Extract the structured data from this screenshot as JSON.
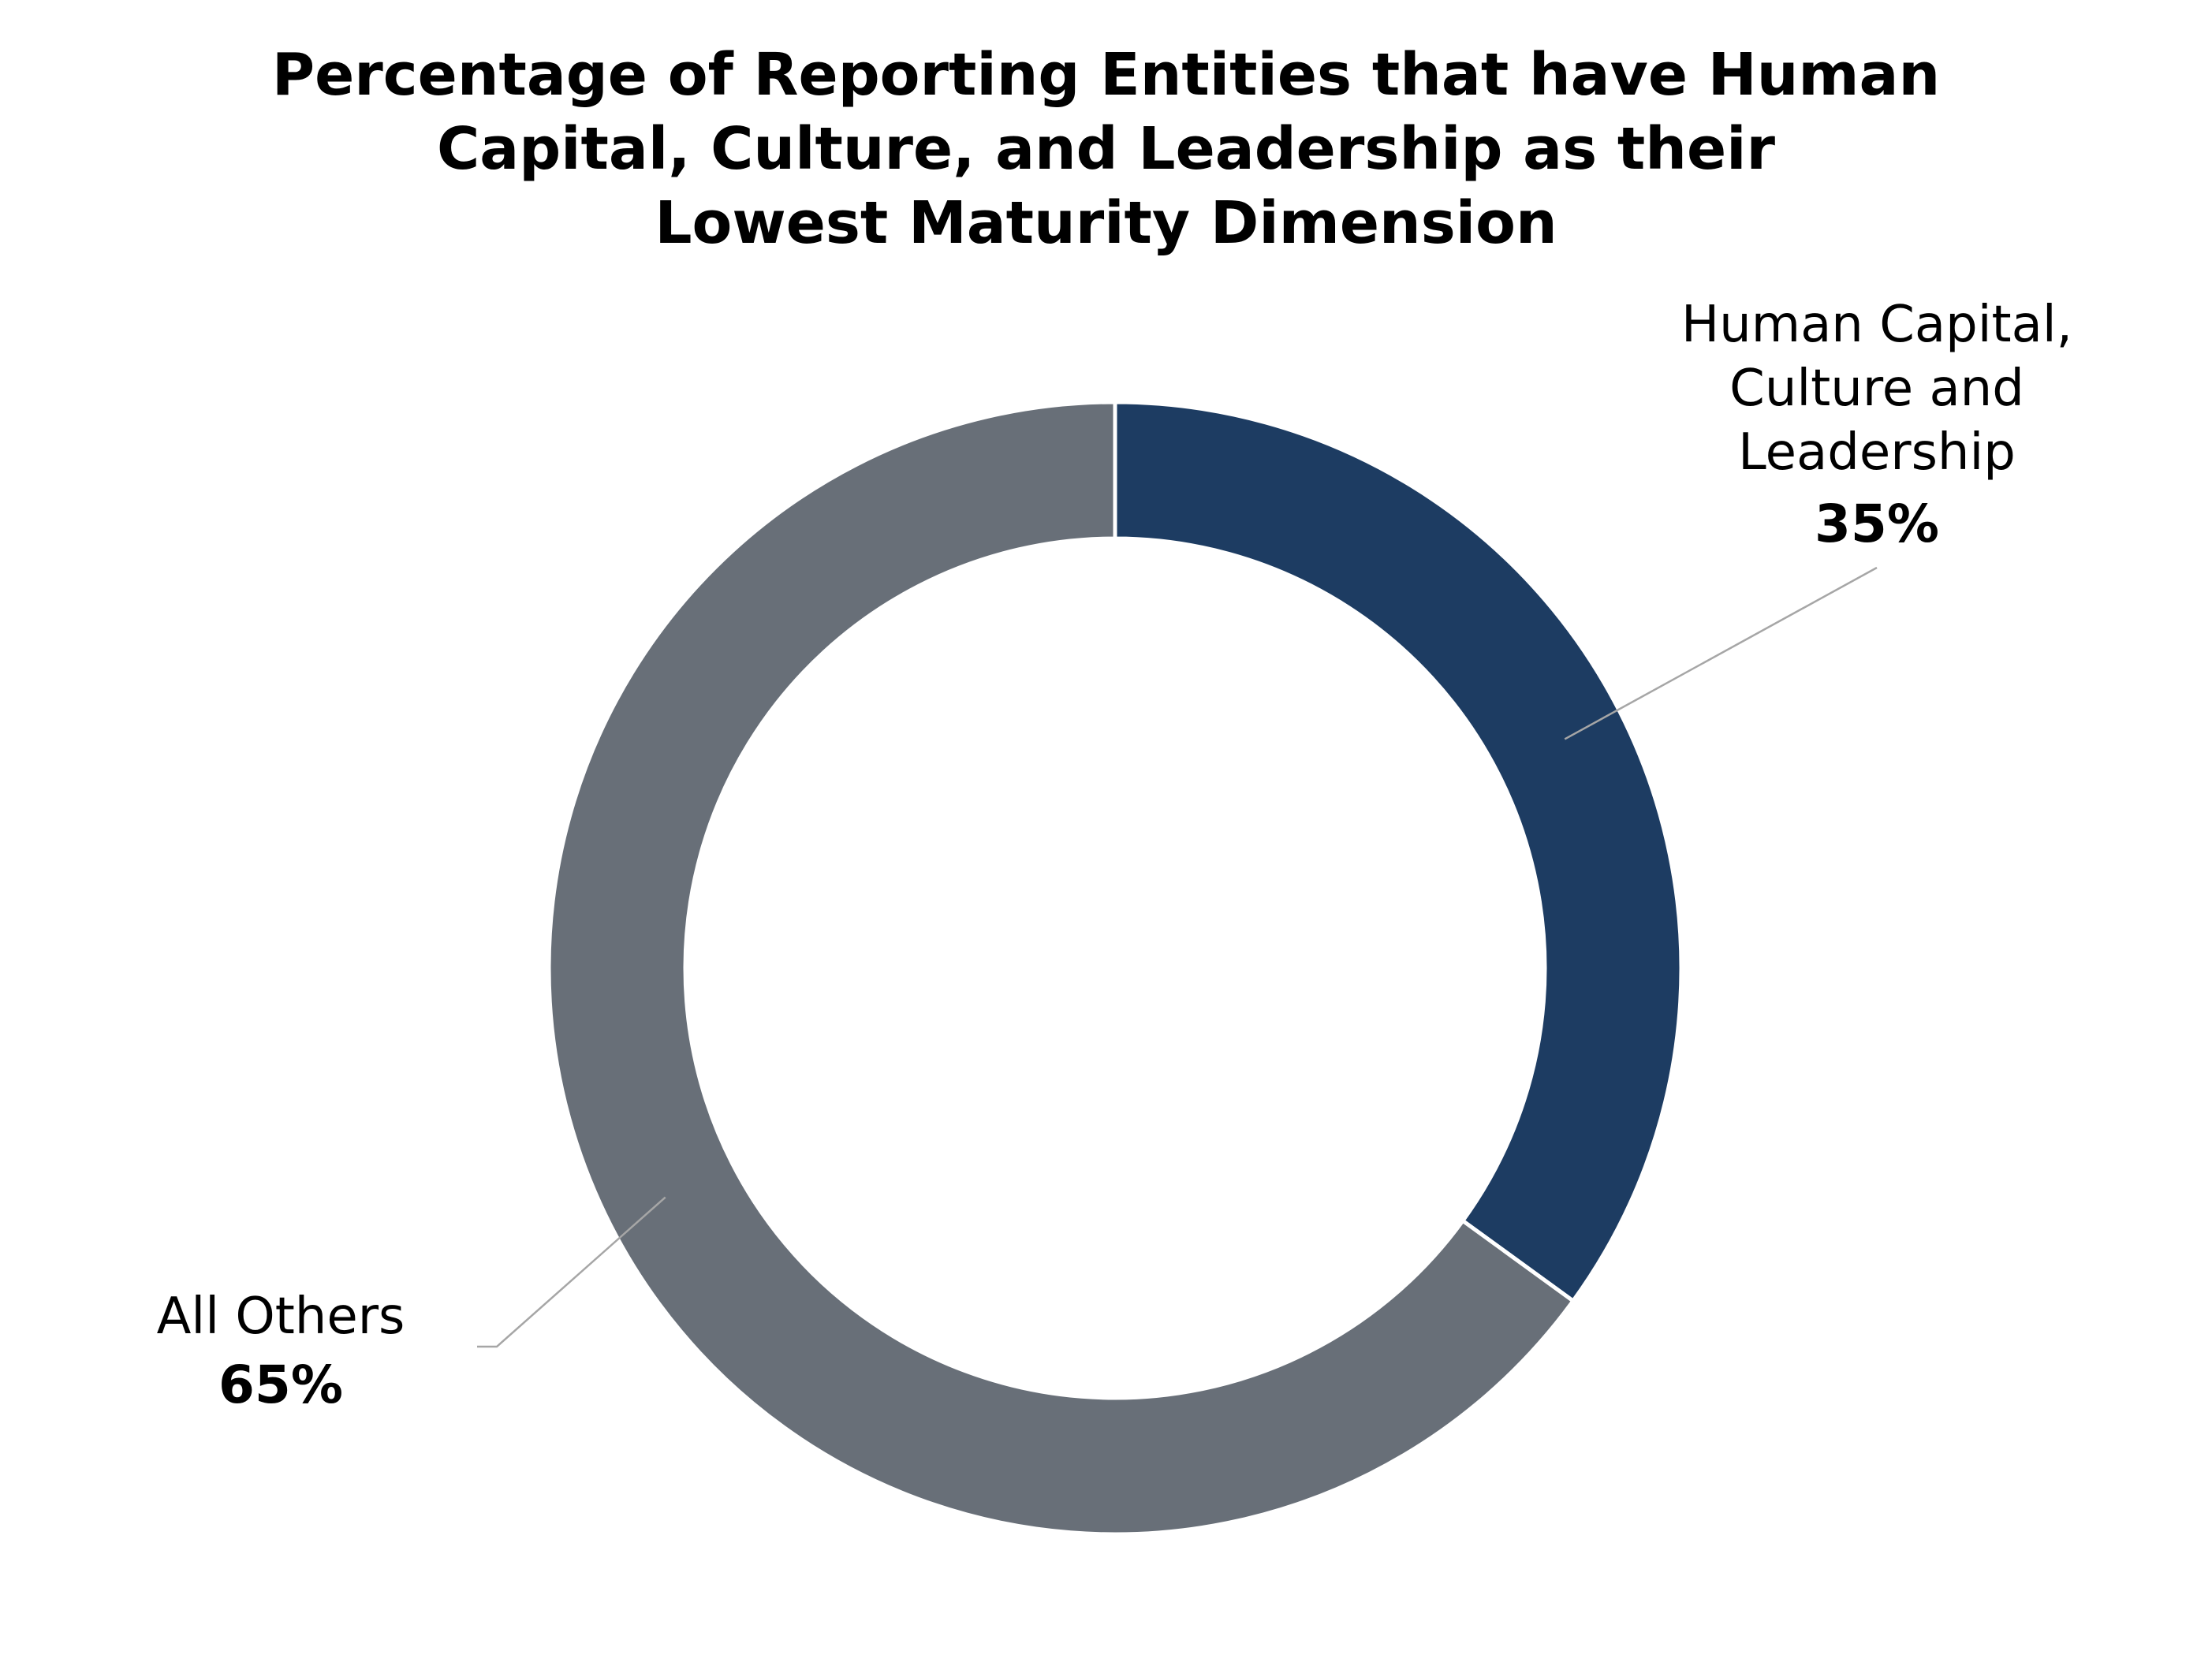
{
  "chart_data": {
    "type": "pie",
    "style": "donut",
    "title": [
      "Percentage of Reporting Entities that have Human",
      "Capital, Culture, and Leadership as their",
      "Lowest Maturity Dimension"
    ],
    "slices": [
      {
        "label_lines": [
          "Human Capital,",
          "Culture and",
          "Leadership"
        ],
        "value": 35,
        "value_label": "35%",
        "color": "#1d3c62"
      },
      {
        "label_lines": [
          "All Others"
        ],
        "value": 65,
        "value_label": "65%",
        "color": "#686f78"
      }
    ],
    "start_angle": "12 o'clock",
    "direction": "clockwise",
    "legend": "none",
    "data_labels": "outside with leader lines"
  }
}
